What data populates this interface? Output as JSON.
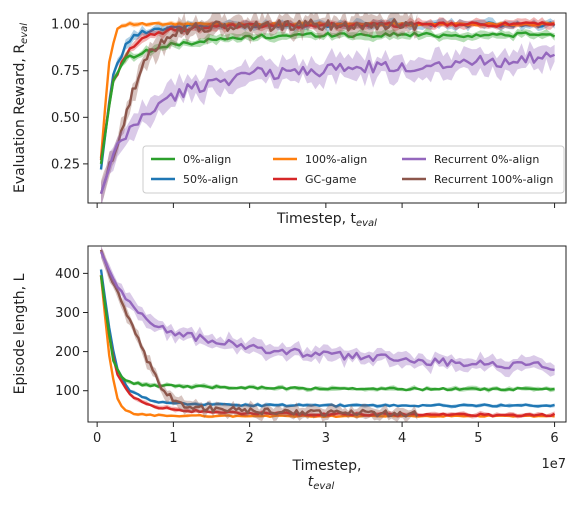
{
  "chart_data": [
    {
      "type": "line",
      "ylabel": "Evaluation Reward, R",
      "ylabel_sub": "eval",
      "xlabel": "Timestep, t",
      "xlabel_sub": "eval",
      "xlim": [
        -1200000,
        61500000
      ],
      "ylim": [
        0.04,
        1.06
      ],
      "yticks": [
        0.25,
        0.5,
        0.75,
        1.0
      ],
      "ytick_labels": [
        "0.25",
        "0.50",
        "0.75",
        "1.00"
      ],
      "xticks": [
        0,
        10000000,
        20000000,
        30000000,
        40000000,
        50000000,
        60000000
      ],
      "show_x_ticklabels": false,
      "legend": {
        "placement": "lower-right",
        "columns": 3,
        "order": [
          "0%-align",
          "50%-align",
          "100%-align",
          "GC-game",
          "Recurrent 0%-align",
          "Recurrent 100%-align"
        ]
      },
      "series": [
        {
          "name": "50%-align",
          "color": "#1f77b4",
          "band": 0.02,
          "x": [
            500000,
            2000000,
            4000000,
            6000000,
            8000000,
            10000000,
            14000000,
            20000000,
            30000000,
            40000000,
            50000000,
            60000000
          ],
          "y": [
            0.22,
            0.72,
            0.91,
            0.96,
            0.975,
            0.985,
            0.99,
            0.995,
            0.997,
            0.998,
            0.998,
            0.998
          ]
        },
        {
          "name": "100%-align",
          "color": "#ff7f0e",
          "band": 0.01,
          "x": [
            500000,
            1500000,
            2500000,
            3200000,
            4000000,
            6000000,
            10000000,
            20000000,
            40000000,
            60000000
          ],
          "y": [
            0.28,
            0.78,
            0.97,
            0.995,
            1.0,
            1.0,
            1.0,
            1.0,
            1.0,
            1.0
          ]
        },
        {
          "name": "GC-game",
          "color": "#d62728",
          "band": 0.02,
          "x": [
            500000,
            2000000,
            4000000,
            6000000,
            8000000,
            10000000,
            14000000,
            20000000,
            30000000,
            40000000,
            50000000,
            60000000
          ],
          "y": [
            0.27,
            0.68,
            0.86,
            0.92,
            0.95,
            0.97,
            0.985,
            0.99,
            0.995,
            0.997,
            0.998,
            0.999
          ]
        },
        {
          "name": "0%-align",
          "color": "#2ca02c",
          "band": 0.02,
          "x": [
            500000,
            2000000,
            3000000,
            4000000,
            6000000,
            8000000,
            10000000,
            14000000,
            20000000,
            26000000,
            30000000,
            36000000,
            40000000,
            46000000,
            50000000,
            56000000,
            60000000
          ],
          "y": [
            0.25,
            0.68,
            0.78,
            0.82,
            0.85,
            0.87,
            0.89,
            0.91,
            0.93,
            0.94,
            0.945,
            0.94,
            0.945,
            0.94,
            0.94,
            0.945,
            0.94
          ]
        },
        {
          "name": "Recurrent 100%-align",
          "color": "#8c564b",
          "band": 0.05,
          "x": [
            500000,
            2000000,
            4000000,
            6000000,
            8000000,
            10000000,
            12000000,
            16000000,
            20000000,
            26000000,
            30000000,
            36000000,
            40000000,
            42000000
          ],
          "y": [
            0.09,
            0.28,
            0.55,
            0.78,
            0.9,
            0.96,
            0.975,
            0.985,
            0.99,
            0.995,
            0.995,
            0.996,
            0.997,
            0.997
          ]
        },
        {
          "name": "Recurrent 0%-align",
          "color": "#9467bd",
          "band": 0.06,
          "x": [
            500000,
            2000000,
            4000000,
            6000000,
            8000000,
            10000000,
            12000000,
            16000000,
            20000000,
            24000000,
            28000000,
            32000000,
            36000000,
            40000000,
            44000000,
            48000000,
            52000000,
            56000000,
            60000000
          ],
          "y": [
            0.09,
            0.28,
            0.42,
            0.5,
            0.57,
            0.61,
            0.65,
            0.7,
            0.73,
            0.74,
            0.75,
            0.76,
            0.77,
            0.76,
            0.79,
            0.8,
            0.8,
            0.82,
            0.81
          ]
        }
      ]
    },
    {
      "type": "line",
      "ylabel": "Episode length, L",
      "xlabel": "Timestep,",
      "xlabel_line2": "t",
      "xlabel_sub": "eval",
      "xlim": [
        -1200000,
        61500000
      ],
      "ylim": [
        20,
        470
      ],
      "yticks": [
        100,
        200,
        300,
        400
      ],
      "ytick_labels": [
        "100",
        "200",
        "300",
        "400"
      ],
      "xticks": [
        0,
        10000000,
        20000000,
        30000000,
        40000000,
        50000000,
        60000000
      ],
      "xtick_labels": [
        "0",
        "1",
        "2",
        "3",
        "4",
        "5",
        "6"
      ],
      "x_scale_label": "1e7",
      "series": [
        {
          "name": "100%-align",
          "color": "#ff7f0e",
          "band": 3,
          "x": [
            500000,
            1500000,
            2500000,
            3500000,
            5000000,
            8000000,
            10000000,
            20000000,
            40000000,
            60000000
          ],
          "y": [
            395,
            200,
            85,
            50,
            40,
            37,
            36,
            35,
            35,
            35
          ]
        },
        {
          "name": "50%-align",
          "color": "#1f77b4",
          "band": 4,
          "x": [
            500000,
            1500000,
            2500000,
            4000000,
            6000000,
            8000000,
            10000000,
            14000000,
            20000000,
            30000000,
            40000000,
            50000000,
            60000000
          ],
          "y": [
            410,
            270,
            160,
            105,
            82,
            72,
            68,
            65,
            63,
            62,
            62,
            62,
            62
          ]
        },
        {
          "name": "GC-game",
          "color": "#d62728",
          "band": 5,
          "x": [
            500000,
            1500000,
            2500000,
            4000000,
            6000000,
            8000000,
            10000000,
            14000000,
            20000000,
            30000000,
            40000000,
            50000000,
            60000000
          ],
          "y": [
            395,
            250,
            150,
            95,
            68,
            58,
            52,
            46,
            42,
            40,
            39,
            38,
            38
          ]
        },
        {
          "name": "0%-align",
          "color": "#2ca02c",
          "band": 5,
          "x": [
            500000,
            2000000,
            3000000,
            4000000,
            6000000,
            8000000,
            10000000,
            14000000,
            20000000,
            26000000,
            30000000,
            36000000,
            40000000,
            46000000,
            50000000,
            56000000,
            60000000
          ],
          "y": [
            395,
            185,
            140,
            122,
            115,
            113,
            112,
            110,
            108,
            106,
            105,
            104,
            104,
            105,
            104,
            104,
            106
          ]
        },
        {
          "name": "Recurrent 100%-align",
          "color": "#8c564b",
          "band": 14,
          "x": [
            500000,
            2000000,
            4000000,
            6000000,
            8000000,
            10000000,
            12000000,
            16000000,
            20000000,
            26000000,
            30000000,
            36000000,
            40000000,
            42000000
          ],
          "y": [
            460,
            380,
            290,
            200,
            120,
            75,
            60,
            52,
            48,
            45,
            44,
            43,
            42,
            42
          ]
        },
        {
          "name": "Recurrent 0%-align",
          "color": "#9467bd",
          "band": 16,
          "x": [
            500000,
            2000000,
            4000000,
            6000000,
            8000000,
            10000000,
            12000000,
            16000000,
            20000000,
            24000000,
            28000000,
            32000000,
            36000000,
            40000000,
            44000000,
            48000000,
            52000000,
            56000000,
            60000000
          ],
          "y": [
            455,
            390,
            330,
            290,
            265,
            250,
            240,
            225,
            210,
            200,
            195,
            190,
            185,
            180,
            175,
            172,
            168,
            165,
            162
          ]
        }
      ]
    }
  ]
}
